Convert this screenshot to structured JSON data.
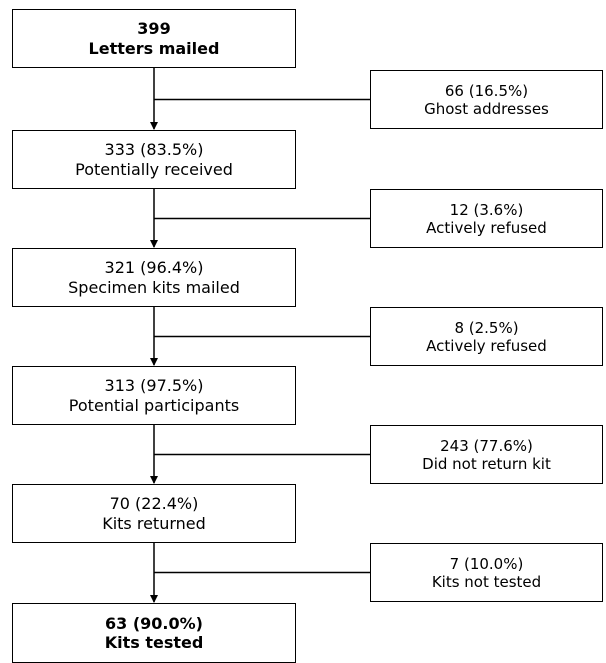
{
  "main_steps": [
    {
      "count": "399",
      "label": "Letters mailed",
      "emphasis": true
    },
    {
      "count": "333 (83.5%)",
      "label": "Potentially received",
      "emphasis": false
    },
    {
      "count": "321 (96.4%)",
      "label": "Specimen kits mailed",
      "emphasis": false
    },
    {
      "count": "313 (97.5%)",
      "label": "Potential participants",
      "emphasis": false
    },
    {
      "count": "70 (22.4%)",
      "label": "Kits returned",
      "emphasis": false
    },
    {
      "count": "63 (90.0%)",
      "label": "Kits tested",
      "emphasis": true
    }
  ],
  "exclusions": [
    {
      "count": "66 (16.5%)",
      "label": "Ghost addresses"
    },
    {
      "count": "12 (3.6%)",
      "label": "Actively refused"
    },
    {
      "count": "8 (2.5%)",
      "label": "Actively refused"
    },
    {
      "count": "243 (77.6%)",
      "label": "Did not return kit"
    },
    {
      "count": "7 (10.0%)",
      "label": "Kits not tested"
    }
  ]
}
